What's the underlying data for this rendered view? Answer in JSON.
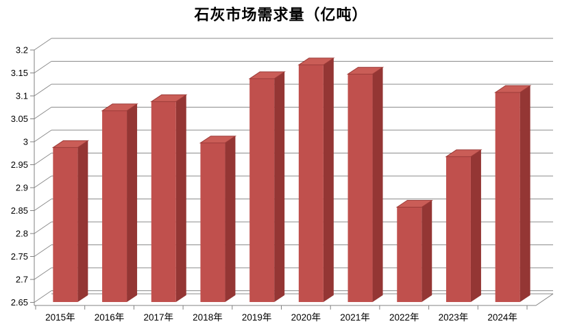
{
  "chart_data": {
    "type": "bar",
    "style": "3d-column",
    "title": "石灰市场需求量（亿吨）",
    "categories": [
      "2015年",
      "2016年",
      "2017年",
      "2018年",
      "2019年",
      "2020年",
      "2021年",
      "2022年",
      "2023年",
      "2024年"
    ],
    "values": [
      2.98,
      3.06,
      3.08,
      2.99,
      3.13,
      3.16,
      3.14,
      2.85,
      2.96,
      3.1
    ],
    "xlabel": "",
    "ylabel": "",
    "ylim": [
      2.65,
      3.2
    ],
    "ytick_step": 0.05,
    "y_tick_labels": [
      "3.2",
      "3.15",
      "3.1",
      "3.05",
      "3",
      "2.95",
      "2.9",
      "2.85",
      "2.8",
      "2.75",
      "2.7",
      "2.65"
    ],
    "grid": true,
    "legend": "none",
    "colors": {
      "bar_front": "#C0504D",
      "bar_side": "#943634",
      "bar_top": "#CA5D57",
      "bar_edge": "#9C3B38",
      "gridline": "#8a8a8a",
      "axis": "#808080",
      "text": "#000000",
      "background": "#ffffff"
    }
  }
}
